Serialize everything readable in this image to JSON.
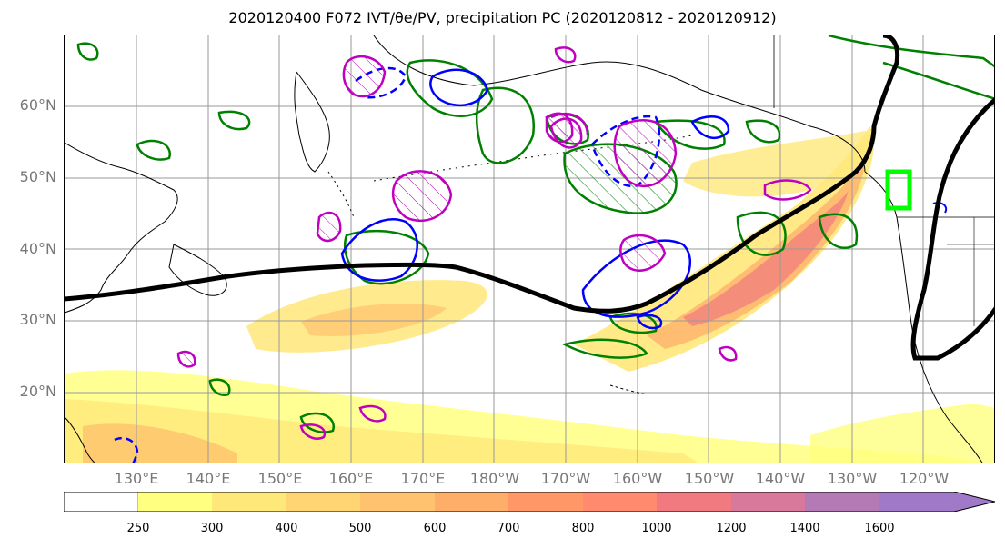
{
  "title": "2020120400 F072 IVT/θe/PV, precipitation PC (2020120812 - 2020120912)",
  "lat_labels": [
    "60°N",
    "50°N",
    "40°N",
    "30°N",
    "20°N"
  ],
  "lon_labels": [
    "130°E",
    "140°E",
    "150°E",
    "160°E",
    "170°E",
    "180°W",
    "170°W",
    "160°W",
    "150°W",
    "140°W",
    "130°W",
    "120°W"
  ],
  "colorbar": {
    "tick_labels": [
      "250",
      "300",
      "400",
      "500",
      "600",
      "700",
      "800",
      "1000",
      "1200",
      "1400",
      "1600"
    ],
    "colors": [
      "#ffffff",
      "#ffff80",
      "#ffe87a",
      "#ffd574",
      "#ffc26e",
      "#ffae6a",
      "#ff9866",
      "#ff8a6e",
      "#f07a80",
      "#d8789a",
      "#b47ab6",
      "#a07ac8"
    ]
  },
  "colors": {
    "jet_line": "#000000",
    "theta_e_contour": "#008000",
    "pv_contour": "#0000ff",
    "pv_hatch_contour": "#c000c0",
    "target_box": "#00ff00",
    "coastline": "#000000",
    "gridline": "#999999"
  }
}
